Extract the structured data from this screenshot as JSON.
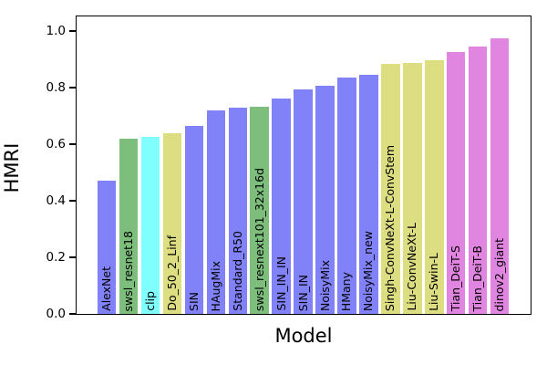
{
  "chart_data": {
    "type": "bar",
    "title": "",
    "xlabel": "Model",
    "ylabel": "HMRI",
    "ylim": [
      0,
      1.05
    ],
    "yticks": [
      0.0,
      0.2,
      0.4,
      0.6,
      0.8,
      1.0
    ],
    "grid": false,
    "legend": null,
    "bar_label_style": "rotated-90-inside-bar-bottom",
    "categories": [
      "AlexNet",
      "swsl_resnet18",
      "clip",
      "Do_50_2_Linf",
      "SIN",
      "HAugMix",
      "Standard_R50",
      "swsl_resnext101_32x16d",
      "SIN_IN_IN",
      "SIN_IN",
      "NoisyMix",
      "HMany",
      "NoisyMix_new",
      "Singh-ConvNeXt-L-ConvStem",
      "Liu-ConvNeXt-L",
      "Liu-Swin-L",
      "Tian_DeiT-S",
      "Tian_DeiT-B",
      "dinov2_giant"
    ],
    "values": [
      0.47,
      0.62,
      0.625,
      0.64,
      0.665,
      0.72,
      0.73,
      0.733,
      0.762,
      0.794,
      0.806,
      0.835,
      0.845,
      0.885,
      0.886,
      0.896,
      0.925,
      0.945,
      0.973
    ],
    "bar_color_keys": [
      "purple",
      "green",
      "cyan",
      "khaki",
      "purple",
      "purple",
      "purple",
      "green",
      "purple",
      "purple",
      "purple",
      "purple",
      "purple",
      "khaki",
      "khaki",
      "khaki",
      "orchid",
      "orchid",
      "orchid"
    ],
    "palette": {
      "purple": "#8282f8",
      "green": "#7dbe7d",
      "cyan": "#80ffff",
      "khaki": "#dddd82",
      "orchid": "#e086e0"
    },
    "text_color": "#000000",
    "spine_color": "#000000",
    "background_color": "#ffffff"
  }
}
